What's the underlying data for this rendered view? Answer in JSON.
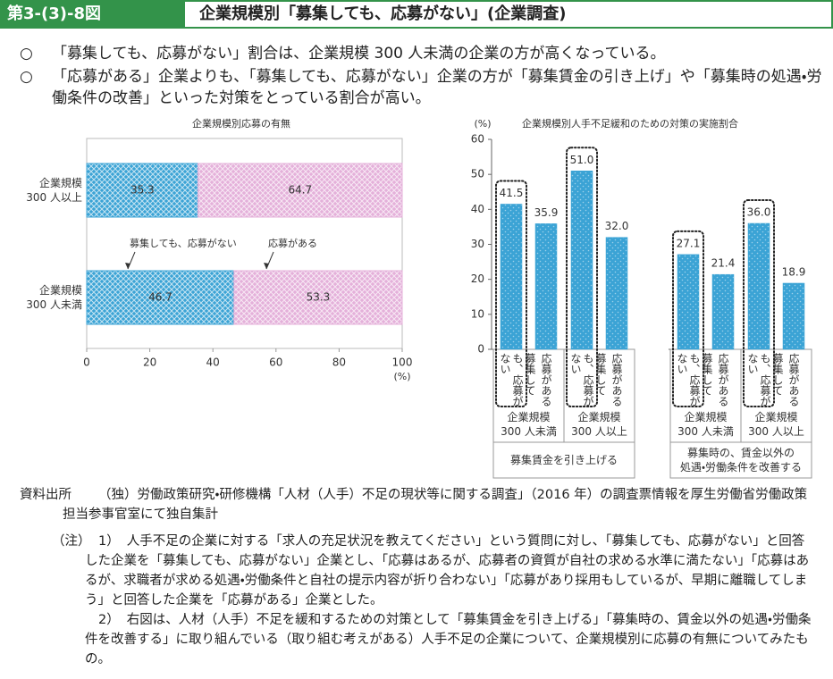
{
  "header": {
    "label": "第3-(3)-8図",
    "title": "企業規模別「募集しても、応募がない」(企業調査)"
  },
  "bullets": [
    {
      "mark": "○",
      "text": "「募集しても、応募がない」割合は、企業規模 300 人未満の企業の方が高くなっている。"
    },
    {
      "mark": "○",
      "text": "「応募がある」企業よりも、「募集しても、応募がない」企業の方が「募集賃金の引き上げ」や「募集時の処遇・労働条件の改善」といった対策をとっている割合が高い。"
    }
  ],
  "chart_data": [
    {
      "type": "stacked_barh",
      "title": "企業規模別応募の有無",
      "categories": [
        "企業規模\n300 人以上",
        "企業規模\n300 人未満"
      ],
      "series": [
        {
          "name": "募集しても、応募がない",
          "color": "#3ba3d5",
          "values": [
            35.3,
            46.7
          ]
        },
        {
          "name": "応募がある",
          "color": "#e4b0da",
          "values": [
            64.7,
            53.3
          ]
        }
      ],
      "xlim": [
        0,
        100
      ],
      "xticks": [
        0,
        20,
        40,
        60,
        80,
        100
      ],
      "xlabel": "(%)"
    },
    {
      "type": "grouped_bar",
      "title": "企業規模別人手不足緩和のための対策の実施割合",
      "ylabel": "(%)",
      "ylim": [
        0,
        60
      ],
      "yticks": [
        0,
        10,
        20,
        30,
        40,
        50,
        60
      ],
      "color": "#3ba3d5",
      "groups": [
        {
          "label": "募集賃金を引き上げる",
          "subgroups": [
            {
              "label": "企業規模\n300 人未満",
              "categories": [
                "募集しても、応募がない",
                "応募がある"
              ],
              "values": [
                41.5,
                35.9
              ],
              "value_labels": [
                "41.5",
                "35.9"
              ]
            },
            {
              "label": "企業規模\n300 人以上",
              "categories": [
                "募集しても、応募がない",
                "応募がある"
              ],
              "values": [
                51.0,
                32.0
              ],
              "value_labels": [
                "51.0",
                "32.0"
              ]
            }
          ]
        },
        {
          "label": "募集時の、賃金以外の\n処遇・労働条件を改善する",
          "subgroups": [
            {
              "label": "企業規模\n300 人未満",
              "categories": [
                "募集しても、応募がない",
                "応募がある"
              ],
              "values": [
                27.1,
                21.4
              ],
              "value_labels": [
                "27.1",
                "21.4"
              ]
            },
            {
              "label": "企業規模\n300 人以上",
              "categories": [
                "募集しても、応募がない",
                "応募がある"
              ],
              "values": [
                36.0,
                18.9
              ],
              "value_labels": [
                "36.0",
                "18.9"
              ]
            }
          ]
        }
      ]
    }
  ],
  "source": {
    "label": "資料出所",
    "text": "（独）労働政策研究・研修機構「人材（人手）不足の現状等に関する調査」（2016 年）の調査票情報を厚生労働省労働政策担当参事官室にて独自集計"
  },
  "notes": {
    "label": "（注）",
    "items": [
      {
        "num": "1）",
        "text": "人手不足の企業に対する「求人の充足状況を教えてください」という質問に対し、「募集しても、応募がない」と回答した企業を「募集しても、応募がない」企業とし、「応募はあるが、応募者の資質が自社の求める水準に満たない」「応募はあるが、求職者が求める処遇・労働条件と自社の提示内容が折り合わない」「応募があり採用もしているが、早期に離職してしまう」と回答した企業を「応募がある」企業とした。"
      },
      {
        "num": "2）",
        "text": "右図は、人材（人手）不足を緩和するための対策として「募集賃金を引き上げる」「募集時の、賃金以外の処遇・労働条件を改善する」に取り組んでいる（取り組む考えがある）人手不足の企業について、企業規模別に応募の有無についてみたもの。"
      }
    ]
  }
}
